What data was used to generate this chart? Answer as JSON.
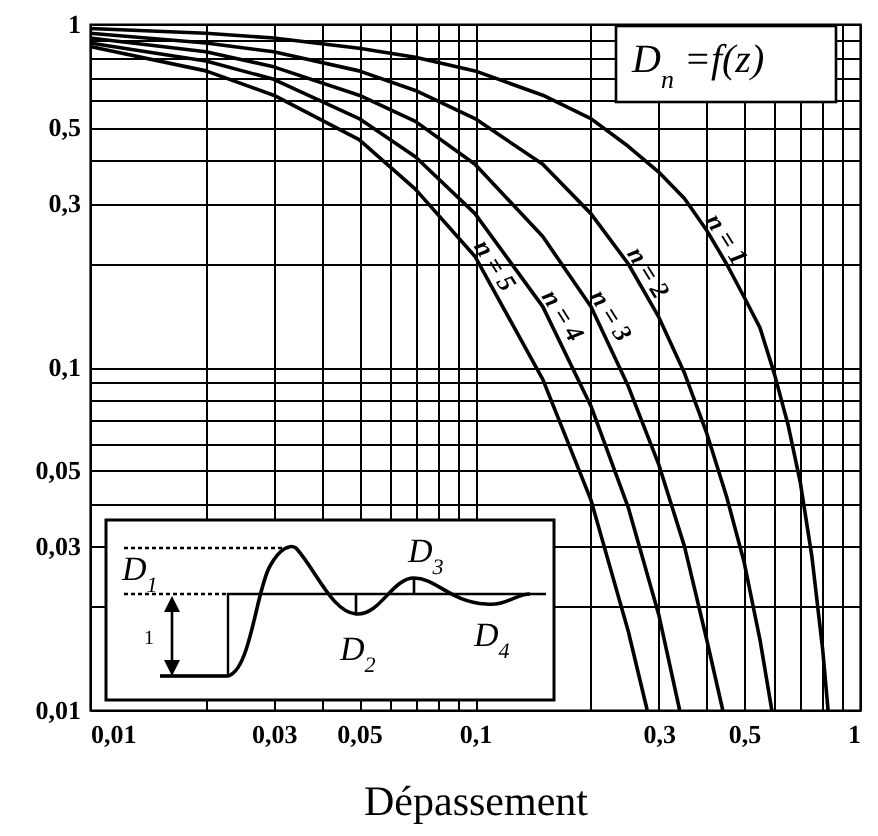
{
  "chart_data": {
    "type": "line",
    "xlabel": "Dépassement",
    "log": "xy",
    "grid": true,
    "xlim": [
      0.01,
      1
    ],
    "ylim": [
      0.01,
      1
    ],
    "xticks": [
      {
        "value": 0.01,
        "label": "0,01"
      },
      {
        "value": 0.02,
        "label": null
      },
      {
        "value": 0.03,
        "label": "0,03"
      },
      {
        "value": 0.04,
        "label": null
      },
      {
        "value": 0.05,
        "label": "0,05"
      },
      {
        "value": 0.06,
        "label": null
      },
      {
        "value": 0.07,
        "label": null
      },
      {
        "value": 0.08,
        "label": null
      },
      {
        "value": 0.09,
        "label": null
      },
      {
        "value": 0.1,
        "label": "0,1"
      },
      {
        "value": 0.2,
        "label": null
      },
      {
        "value": 0.3,
        "label": "0,3"
      },
      {
        "value": 0.4,
        "label": null
      },
      {
        "value": 0.5,
        "label": "0,5"
      },
      {
        "value": 0.6,
        "label": null
      },
      {
        "value": 0.7,
        "label": null
      },
      {
        "value": 0.8,
        "label": null
      },
      {
        "value": 0.9,
        "label": null
      },
      {
        "value": 1,
        "label": "1"
      }
    ],
    "yticks": [
      {
        "value": 0.01,
        "label": "0,01"
      },
      {
        "value": 0.02,
        "label": null
      },
      {
        "value": 0.03,
        "label": "0,03"
      },
      {
        "value": 0.04,
        "label": null
      },
      {
        "value": 0.05,
        "label": "0,05"
      },
      {
        "value": 0.06,
        "label": null
      },
      {
        "value": 0.07,
        "label": null
      },
      {
        "value": 0.08,
        "label": null
      },
      {
        "value": 0.09,
        "label": null
      },
      {
        "value": 0.1,
        "label": "0,1"
      },
      {
        "value": 0.2,
        "label": null
      },
      {
        "value": 0.3,
        "label": "0,3"
      },
      {
        "value": 0.4,
        "label": null
      },
      {
        "value": 0.5,
        "label": "0,5"
      },
      {
        "value": 0.6,
        "label": null
      },
      {
        "value": 0.7,
        "label": null
      },
      {
        "value": 0.8,
        "label": null
      },
      {
        "value": 0.9,
        "label": null
      },
      {
        "value": 1,
        "label": "1"
      }
    ],
    "annotations": [
      "D$_{n}$ =f(z)",
      "D$_{1}$",
      "1",
      "D$_{2}$",
      "D$_{3}$",
      "D$_{4}$"
    ],
    "series": [
      {
        "name": "n = 1",
        "color": "#000000",
        "x": [
          0.01,
          0.02,
          0.03,
          0.05,
          0.07,
          0.1,
          0.15,
          0.2,
          0.25,
          0.3,
          0.35,
          0.4,
          0.45,
          0.5,
          0.55,
          0.6,
          0.65,
          0.7,
          0.75,
          0.8,
          0.826
        ],
        "values": [
          0.97,
          0.94,
          0.91,
          0.85,
          0.8,
          0.73,
          0.62,
          0.53,
          0.44,
          0.37,
          0.31,
          0.25,
          0.2,
          0.16,
          0.13,
          0.095,
          0.068,
          0.046,
          0.028,
          0.015,
          0.01
        ]
      },
      {
        "name": "n = 2",
        "color": "#000000",
        "x": [
          0.01,
          0.02,
          0.03,
          0.05,
          0.07,
          0.1,
          0.15,
          0.2,
          0.25,
          0.3,
          0.35,
          0.4,
          0.45,
          0.5,
          0.55,
          0.59
        ],
        "values": [
          0.94,
          0.88,
          0.83,
          0.73,
          0.64,
          0.53,
          0.39,
          0.28,
          0.2,
          0.14,
          0.096,
          0.064,
          0.042,
          0.027,
          0.016,
          0.01
        ]
      },
      {
        "name": "n = 3",
        "color": "#000000",
        "x": [
          0.01,
          0.02,
          0.03,
          0.05,
          0.07,
          0.1,
          0.15,
          0.2,
          0.25,
          0.3,
          0.35,
          0.4,
          0.44
        ],
        "values": [
          0.91,
          0.83,
          0.75,
          0.62,
          0.52,
          0.39,
          0.24,
          0.15,
          0.088,
          0.052,
          0.03,
          0.016,
          0.01
        ]
      },
      {
        "name": "n = 4",
        "color": "#000000",
        "x": [
          0.01,
          0.02,
          0.03,
          0.05,
          0.07,
          0.1,
          0.15,
          0.2,
          0.25,
          0.3,
          0.34
        ],
        "values": [
          0.88,
          0.78,
          0.69,
          0.53,
          0.41,
          0.28,
          0.15,
          0.077,
          0.039,
          0.019,
          0.01
        ]
      },
      {
        "name": "n = 5",
        "color": "#000000",
        "x": [
          0.01,
          0.02,
          0.03,
          0.05,
          0.07,
          0.1,
          0.15,
          0.2,
          0.25,
          0.28
        ],
        "values": [
          0.86,
          0.73,
          0.62,
          0.46,
          0.33,
          0.21,
          0.092,
          0.041,
          0.017,
          0.01
        ]
      }
    ]
  }
}
